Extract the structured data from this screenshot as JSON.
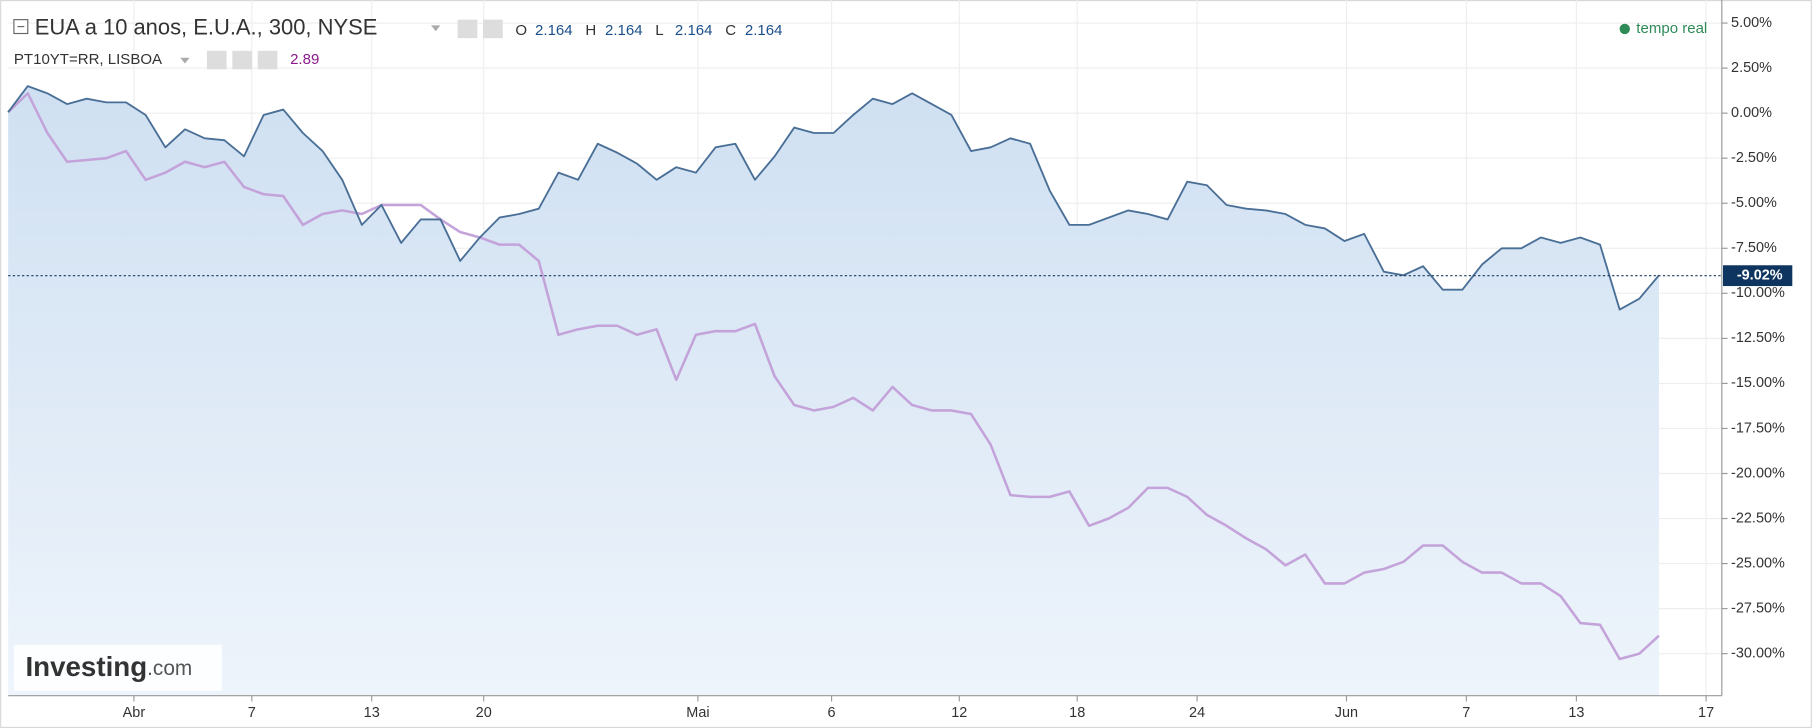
{
  "chart_data": {
    "type": "line",
    "ohlc": [
      {
        "label": "O",
        "value": 2.164
      },
      {
        "label": "H",
        "value": 2.164
      },
      {
        "label": "L",
        "value": 2.164
      },
      {
        "label": "C",
        "value": 2.164
      }
    ],
    "second_value": 2.89,
    "realtime": "tempo real",
    "logo": {
      "name": "Investing",
      "suffix": ".com"
    },
    "last_value": {
      "value": -9.02,
      "label": "-9.02%"
    },
    "x": [
      0,
      1,
      2,
      3,
      4,
      5,
      6,
      7,
      8,
      9,
      10,
      11,
      12,
      13,
      14,
      15,
      16,
      17,
      18,
      19,
      20,
      21,
      22,
      23,
      24,
      25,
      26,
      27,
      28,
      29,
      30,
      31,
      32,
      33,
      34,
      35,
      36,
      37,
      38,
      39,
      40,
      41,
      42,
      43,
      44,
      45,
      46,
      47,
      48,
      49,
      50,
      51,
      52,
      53,
      54,
      55,
      56,
      57,
      58,
      59,
      60,
      61,
      62,
      63,
      64,
      65,
      66,
      67,
      68,
      69,
      70,
      71,
      72,
      73,
      74,
      75,
      76,
      77,
      78,
      79,
      80,
      81,
      82,
      83,
      84
    ],
    "series": [
      {
        "name": "EUA a 10 anos, E.U.A., 300, NYSE",
        "color": "#4a6f96",
        "values": [
          0.05,
          1.5,
          1.1,
          0.5,
          0.8,
          0.6,
          0.6,
          -0.1,
          -1.9,
          -0.9,
          -1.4,
          -1.5,
          -2.4,
          -0.1,
          0.2,
          -1.1,
          -2.1,
          -3.7,
          -6.2,
          -5.1,
          -7.2,
          -5.9,
          -5.9,
          -8.2,
          -6.9,
          -5.8,
          -5.6,
          -5.3,
          -3.3,
          -3.7,
          -1.7,
          -2.2,
          -2.8,
          -3.7,
          -3.0,
          -3.3,
          -1.9,
          -1.7,
          -3.7,
          -2.4,
          -0.8,
          -1.1,
          -1.1,
          -0.1,
          0.8,
          0.5,
          1.1,
          0.5,
          -0.1,
          -2.1,
          -1.9,
          -1.4,
          -1.7,
          -4.3,
          -6.2,
          -6.2,
          -5.8,
          -5.4,
          -5.6,
          -5.9,
          -3.8,
          -4.0,
          -5.1,
          -5.3,
          -5.4,
          -5.6,
          -6.2,
          -6.4,
          -7.1,
          -6.7,
          -8.8,
          -9.0,
          -8.5,
          -9.8,
          -9.8,
          -8.4,
          -7.5,
          -7.5,
          -6.9,
          -7.2,
          -6.9,
          -7.3,
          -10.9,
          -10.3,
          -9.0
        ]
      },
      {
        "name": "PT10YT=RR, LISBOA",
        "color": "#c3a3d9",
        "values": [
          0.05,
          1.1,
          -1.1,
          -2.7,
          -2.6,
          -2.5,
          -2.1,
          -3.7,
          -3.3,
          -2.7,
          -3.0,
          -2.7,
          -4.1,
          -4.5,
          -4.6,
          -6.2,
          -5.6,
          -5.4,
          -5.6,
          -5.1,
          -5.1,
          -5.1,
          -5.9,
          -6.6,
          -6.9,
          -7.3,
          -7.3,
          -8.2,
          -12.3,
          -12.0,
          -11.8,
          -11.8,
          -12.3,
          -12.0,
          -14.8,
          -12.3,
          -12.1,
          -12.1,
          -11.7,
          -14.6,
          -16.2,
          -16.5,
          -16.3,
          -15.8,
          -16.5,
          -15.2,
          -16.2,
          -16.5,
          -16.5,
          -16.7,
          -18.4,
          -21.2,
          -21.3,
          -21.3,
          -21.0,
          -22.9,
          -22.5,
          -21.9,
          -20.8,
          -20.8,
          -21.3,
          -22.3,
          -22.9,
          -23.6,
          -24.2,
          -25.1,
          -24.5,
          -26.1,
          -26.1,
          -25.5,
          -25.3,
          -24.9,
          -24.0,
          -24.0,
          -24.9,
          -25.5,
          -25.5,
          -26.1,
          -26.1,
          -26.8,
          -28.3,
          -28.4,
          -30.3,
          -30.0,
          -29.0
        ]
      }
    ],
    "xlim": [
      0,
      87.2
    ],
    "xticks": [
      {
        "value": 6.4,
        "label": "Abr"
      },
      {
        "value": 12.4,
        "label": "7"
      },
      {
        "value": 18.5,
        "label": "13"
      },
      {
        "value": 24.2,
        "label": "20"
      },
      {
        "value": 35.1,
        "label": "Mai"
      },
      {
        "value": 41.9,
        "label": "6"
      },
      {
        "value": 48.4,
        "label": "12"
      },
      {
        "value": 54.4,
        "label": "18"
      },
      {
        "value": 60.5,
        "label": "24"
      },
      {
        "value": 68.1,
        "label": "Jun"
      },
      {
        "value": 74.2,
        "label": "7"
      },
      {
        "value": 79.8,
        "label": "13"
      },
      {
        "value": 86.4,
        "label": "17"
      }
    ],
    "ylim": [
      -32.33,
      6.28
    ],
    "yticks": [
      {
        "value": 5,
        "label": "5.00%"
      },
      {
        "value": 2.5,
        "label": "2.50%"
      },
      {
        "value": 0,
        "label": "0.00%"
      },
      {
        "value": -2.5,
        "label": "-2.50%"
      },
      {
        "value": -5,
        "label": "-5.00%"
      },
      {
        "value": -7.5,
        "label": "-7.50%"
      },
      {
        "value": -10,
        "label": "-10.00%"
      },
      {
        "value": -12.5,
        "label": "-12.50%"
      },
      {
        "value": -15,
        "label": "-15.00%"
      },
      {
        "value": -17.5,
        "label": "-17.50%"
      },
      {
        "value": -20,
        "label": "-20.00%"
      },
      {
        "value": -22.5,
        "label": "-22.50%"
      },
      {
        "value": -25,
        "label": "-25.00%"
      },
      {
        "value": -27.5,
        "label": "-27.50%"
      },
      {
        "value": -30,
        "label": "-30.00%"
      }
    ],
    "grid": true,
    "area": true
  }
}
